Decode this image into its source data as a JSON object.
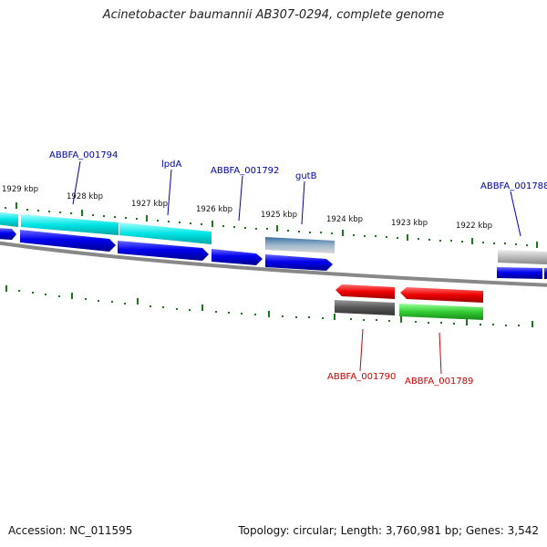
{
  "title": "Acinetobacter baumannii AB307-0294, complete genome",
  "footer": {
    "accession": "Accession: NC_011595",
    "summary": "Topology: circular; Length: 3,760,981 bp; Genes: 3,542"
  },
  "scale": {
    "unit": "kbp",
    "ticks": [
      "1929 kbp",
      "1928 kbp",
      "1927 kbp",
      "1926 kbp",
      "1925 kbp",
      "1924 kbp",
      "1923 kbp",
      "1922 kbp"
    ]
  },
  "colors": {
    "backbone": "#808080",
    "cds": "#0000ee",
    "trna_like": "#00e5e5",
    "forward_other": "#4a7fb0",
    "reverse_cds": "#ee0000",
    "reverse_green": "#33cc33",
    "gray_feature": "#555555",
    "light_gray_feature": "#bbbbbb",
    "tick": "#1a7a1a",
    "label_forward": "#0000aa",
    "label_reverse": "#cc0000"
  },
  "genes_forward": [
    "ABBFA_001794",
    "lpdA",
    "ABBFA_001792",
    "gutB",
    "ABBFA_001788"
  ],
  "genes_reverse": [
    "ABBFA_001790",
    "ABBFA_001789"
  ]
}
